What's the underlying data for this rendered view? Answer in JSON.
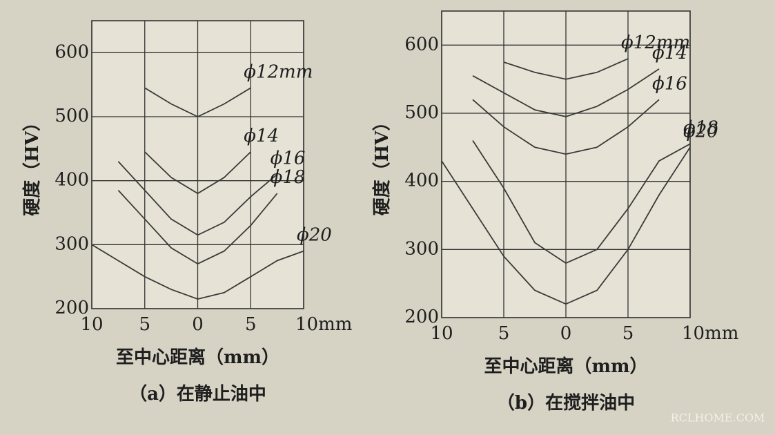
{
  "chart_data": [
    {
      "type": "line",
      "caption": "（a）在静止油中",
      "ylabel": "硬度（HV）",
      "xlabel": "至中心距离（mm）",
      "x": [
        -10,
        -7.5,
        -5,
        -2.5,
        0,
        2.5,
        5,
        7.5,
        10
      ],
      "xlim": [
        -10,
        10
      ],
      "xticks": [
        {
          "value": -10,
          "label": "10"
        },
        {
          "value": -5,
          "label": "5"
        },
        0,
        5,
        {
          "value": 10,
          "label": "10mm"
        }
      ],
      "ylim": [
        200,
        650
      ],
      "yticks": [
        200,
        300,
        400,
        500,
        600
      ],
      "grid": true,
      "series": [
        {
          "name": "ϕ12mm",
          "color": "#3a3a3a",
          "values": [
            null,
            null,
            545,
            520,
            500,
            520,
            545,
            null,
            null
          ]
        },
        {
          "name": "ϕ14",
          "color": "#3a3a3a",
          "values": [
            null,
            null,
            445,
            405,
            380,
            405,
            445,
            null,
            null
          ]
        },
        {
          "name": "ϕ16",
          "color": "#3a3a3a",
          "values": [
            null,
            430,
            385,
            340,
            315,
            335,
            375,
            410,
            null
          ]
        },
        {
          "name": "ϕ18",
          "color": "#3a3a3a",
          "values": [
            null,
            385,
            340,
            295,
            270,
            290,
            330,
            380,
            null
          ]
        },
        {
          "name": "ϕ20",
          "color": "#3a3a3a",
          "values": [
            300,
            275,
            250,
            230,
            215,
            225,
            250,
            275,
            290
          ]
        }
      ]
    },
    {
      "type": "line",
      "caption": "（b）在搅拌油中",
      "ylabel": "硬度（HV）",
      "xlabel": "至中心距离（mm）",
      "x": [
        -10,
        -7.5,
        -5,
        -2.5,
        0,
        2.5,
        5,
        7.5,
        10
      ],
      "xlim": [
        -10,
        10
      ],
      "xticks": [
        {
          "value": -10,
          "label": "10"
        },
        {
          "value": -5,
          "label": "5"
        },
        0,
        5,
        {
          "value": 10,
          "label": "10mm"
        }
      ],
      "ylim": [
        200,
        650
      ],
      "yticks": [
        200,
        300,
        400,
        500,
        600
      ],
      "grid": true,
      "series": [
        {
          "name": "ϕ12mm",
          "color": "#3a3a3a",
          "values": [
            null,
            null,
            575,
            560,
            550,
            560,
            580,
            null,
            null
          ]
        },
        {
          "name": "ϕ14",
          "color": "#3a3a3a",
          "values": [
            null,
            555,
            530,
            505,
            495,
            510,
            535,
            565,
            null
          ]
        },
        {
          "name": "ϕ16",
          "color": "#3a3a3a",
          "values": [
            null,
            520,
            480,
            450,
            440,
            450,
            480,
            520,
            null
          ]
        },
        {
          "name": "ϕ18",
          "color": "#3a3a3a",
          "values": [
            null,
            460,
            390,
            310,
            280,
            300,
            360,
            430,
            455
          ]
        },
        {
          "name": "ϕ20",
          "color": "#3a3a3a",
          "values": [
            430,
            360,
            290,
            240,
            220,
            240,
            300,
            380,
            450
          ]
        }
      ]
    }
  ],
  "watermark": "RCLHOME.COM"
}
